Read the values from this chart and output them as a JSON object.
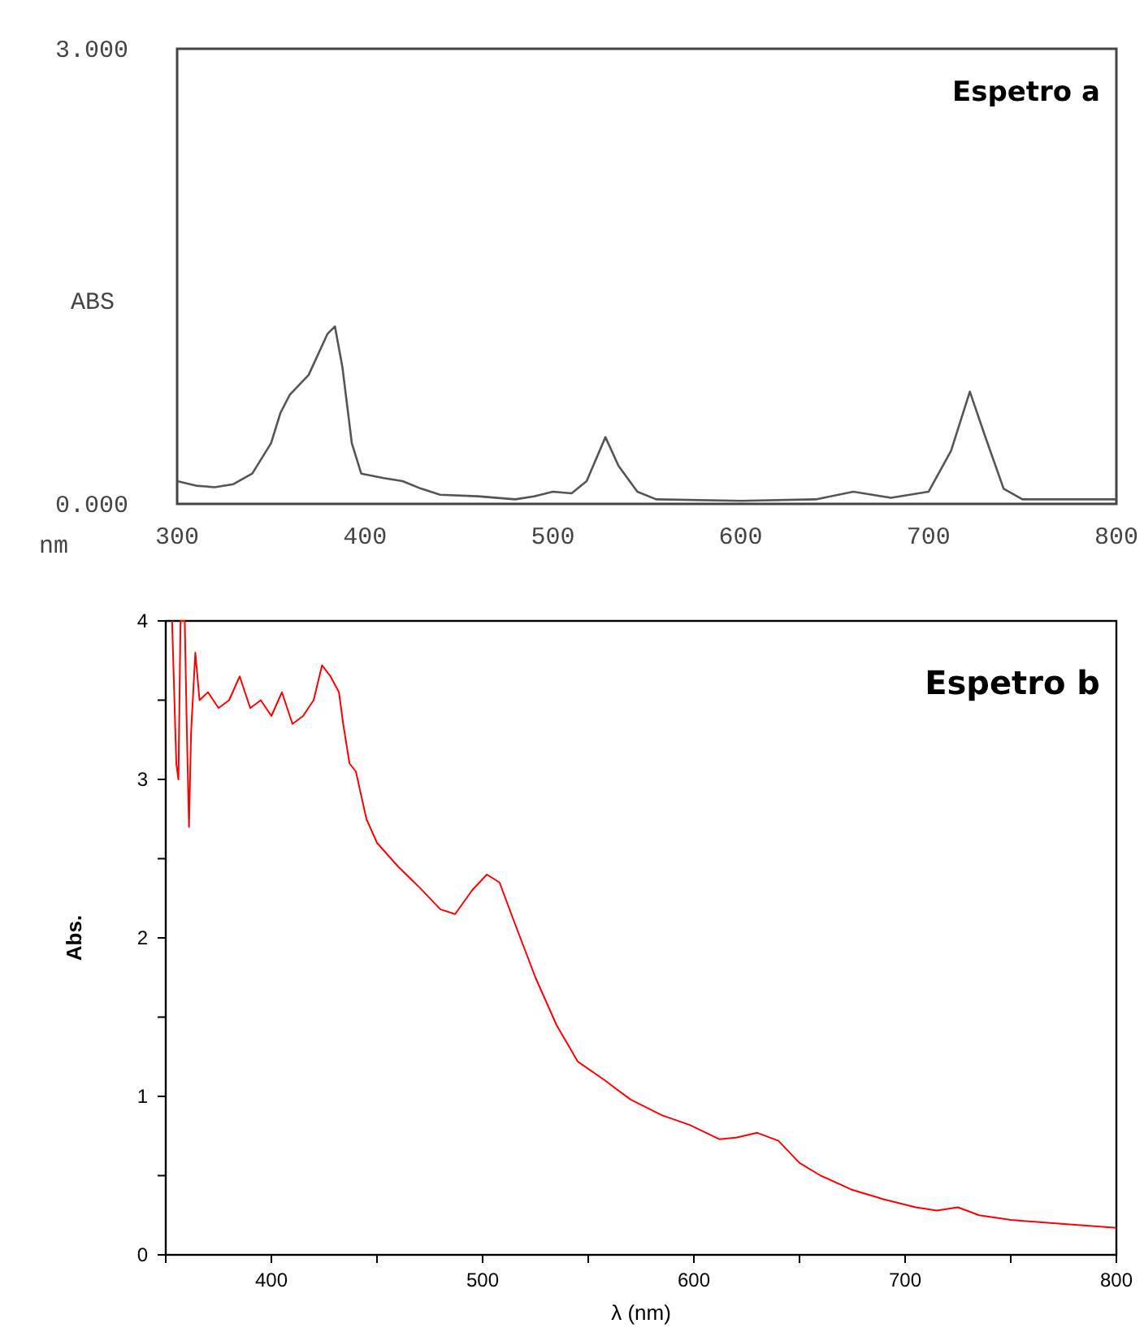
{
  "chart_data": [
    {
      "type": "line",
      "title": "Espetro a",
      "xlabel": "nm",
      "ylabel": "ABS",
      "xlim": [
        300,
        800
      ],
      "ylim": [
        0,
        3
      ],
      "xticks": [
        300,
        400,
        500,
        600,
        700,
        800
      ],
      "yticks": [
        {
          "value": 0,
          "label": "0.000"
        },
        {
          "value": 3,
          "label": "3.000"
        }
      ],
      "grid": false,
      "series": [
        {
          "color": "#555555",
          "x": [
            300,
            310,
            320,
            330,
            340,
            350,
            355,
            360,
            370,
            380,
            384,
            388,
            393,
            398,
            410,
            420,
            430,
            440,
            460,
            480,
            490,
            500,
            510,
            518,
            528,
            535,
            545,
            555,
            600,
            640,
            660,
            680,
            700,
            712,
            722,
            730,
            740,
            750,
            800
          ],
          "values": [
            0.15,
            0.12,
            0.11,
            0.13,
            0.2,
            0.4,
            0.6,
            0.72,
            0.85,
            1.12,
            1.17,
            0.9,
            0.4,
            0.2,
            0.17,
            0.15,
            0.1,
            0.06,
            0.05,
            0.03,
            0.05,
            0.08,
            0.07,
            0.15,
            0.44,
            0.25,
            0.08,
            0.03,
            0.02,
            0.03,
            0.08,
            0.04,
            0.08,
            0.35,
            0.74,
            0.45,
            0.1,
            0.03,
            0.03
          ]
        }
      ]
    },
    {
      "type": "line",
      "title": "Espetro b",
      "xlabel": "λ (nm)",
      "ylabel": "Abs.",
      "xlim": [
        350,
        800
      ],
      "ylim": [
        0,
        4
      ],
      "xticks": [
        {
          "value": 350,
          "label": null
        },
        400,
        {
          "value": 450,
          "label": null
        },
        500,
        {
          "value": 550,
          "label": null
        },
        600,
        {
          "value": 650,
          "label": null
        },
        700,
        {
          "value": 750,
          "label": null
        },
        800
      ],
      "yticks": [
        0,
        {
          "value": 0.5,
          "label": null
        },
        1,
        {
          "value": 1.5,
          "label": null
        },
        2,
        {
          "value": 2.5,
          "label": null
        },
        3,
        {
          "value": 3.5,
          "label": null
        },
        4
      ],
      "grid": false,
      "series": [
        {
          "color": "#ff0000",
          "x": [
            353,
            355,
            356,
            357,
            359,
            360,
            361,
            362,
            364,
            366,
            370,
            375,
            380,
            385,
            390,
            395,
            400,
            405,
            410,
            415,
            420,
            424,
            428,
            432,
            434,
            437,
            440,
            445,
            450,
            460,
            470,
            480,
            487,
            495,
            502,
            508,
            515,
            525,
            535,
            545,
            558,
            570,
            585,
            598,
            612,
            620,
            630,
            640,
            650,
            660,
            675,
            690,
            705,
            715,
            725,
            735,
            750,
            770,
            800
          ],
          "values": [
            4.0,
            3.1,
            3.0,
            4.0,
            4.0,
            3.3,
            2.7,
            3.3,
            3.8,
            3.5,
            3.55,
            3.45,
            3.5,
            3.65,
            3.45,
            3.5,
            3.4,
            3.55,
            3.35,
            3.4,
            3.5,
            3.72,
            3.65,
            3.55,
            3.35,
            3.1,
            3.05,
            2.75,
            2.6,
            2.45,
            2.32,
            2.18,
            2.15,
            2.3,
            2.4,
            2.35,
            2.1,
            1.75,
            1.45,
            1.22,
            1.1,
            0.98,
            0.88,
            0.82,
            0.73,
            0.74,
            0.77,
            0.72,
            0.58,
            0.5,
            0.41,
            0.35,
            0.3,
            0.28,
            0.3,
            0.25,
            0.22,
            0.2,
            0.17
          ]
        }
      ]
    }
  ]
}
